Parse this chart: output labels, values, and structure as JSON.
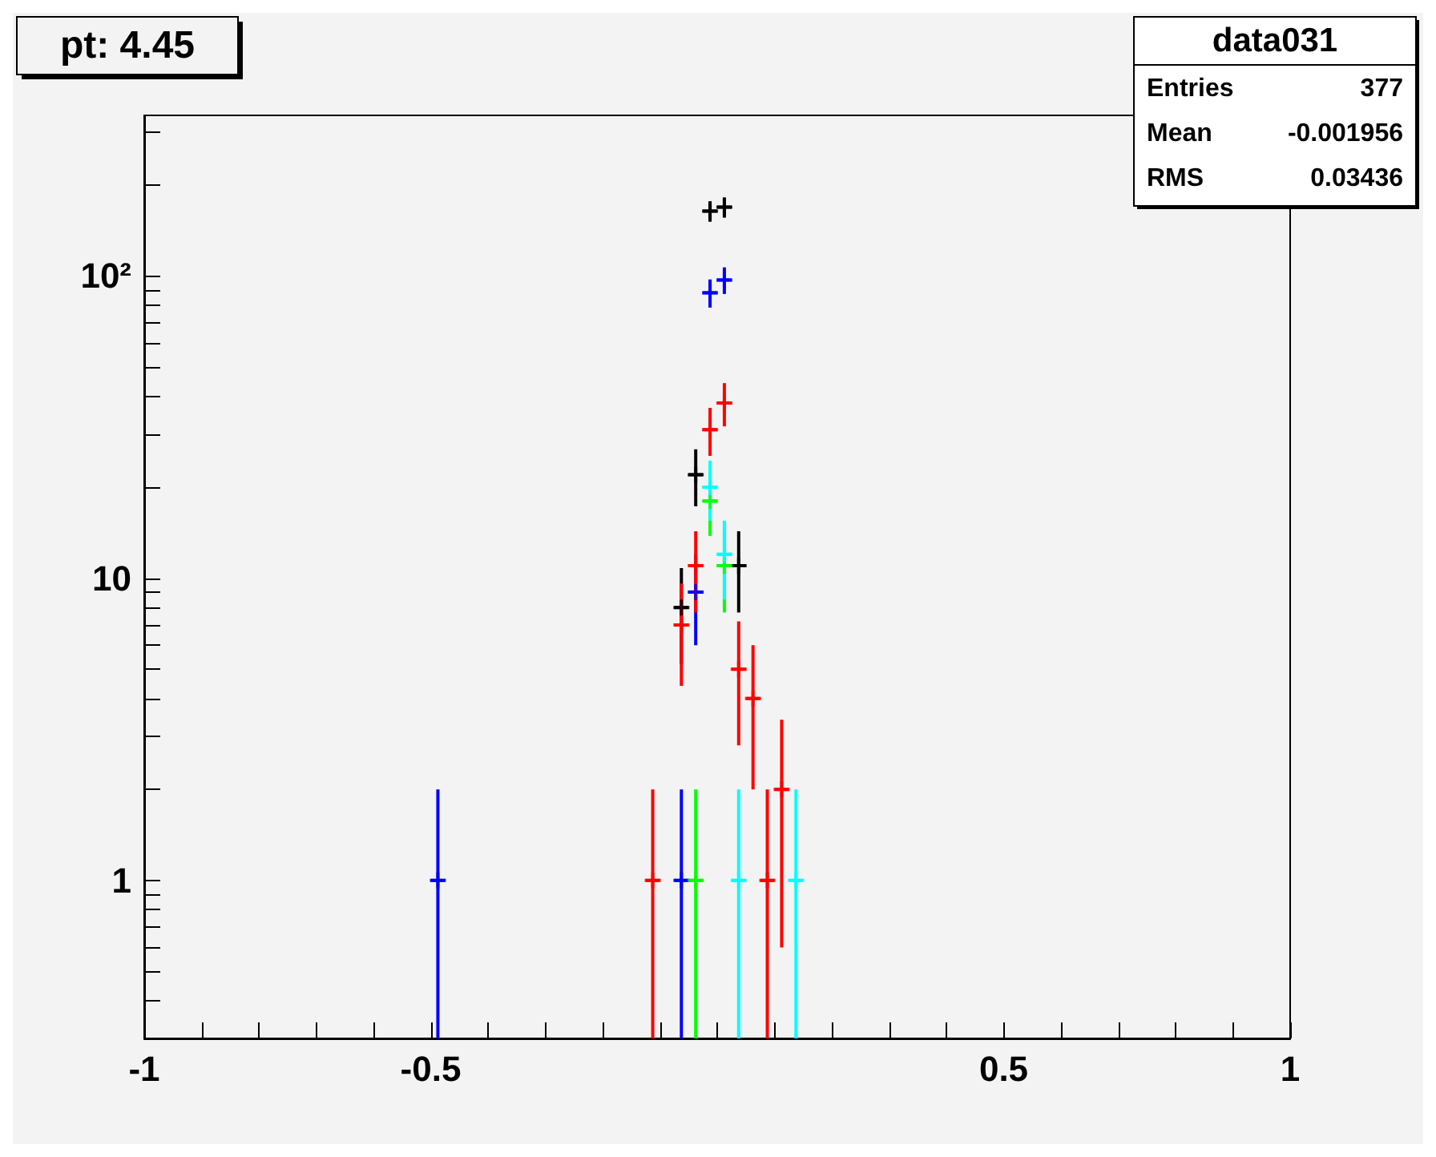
{
  "chart_data": {
    "type": "scatter",
    "title": "pt: 4.45",
    "annotations": [
      "data031",
      "Entries",
      "377",
      "Mean",
      "-0.001956",
      "RMS",
      "0.03436"
    ],
    "log": "y",
    "marker": "cross",
    "grid": false,
    "xlim": [
      -1,
      1
    ],
    "xticks": [
      -1,
      {
        "value": -0.9,
        "label": null
      },
      {
        "value": -0.8,
        "label": null
      },
      {
        "value": -0.7,
        "label": null
      },
      {
        "value": -0.6,
        "label": null
      },
      -0.5,
      {
        "value": -0.4,
        "label": null
      },
      {
        "value": -0.3,
        "label": null
      },
      {
        "value": -0.2,
        "label": null
      },
      {
        "value": -0.1,
        "label": null
      },
      {
        "value": 0,
        "label": null
      },
      {
        "value": 0.1,
        "label": null
      },
      {
        "value": 0.2,
        "label": null
      },
      {
        "value": 0.3,
        "label": null
      },
      {
        "value": 0.4,
        "label": null
      },
      0.5,
      {
        "value": 0.6,
        "label": null
      },
      {
        "value": 0.7,
        "label": null
      },
      {
        "value": 0.8,
        "label": null
      },
      {
        "value": 0.9,
        "label": null
      },
      1
    ],
    "ylim": [
      0.3,
      340
    ],
    "yticks": [
      {
        "value": 0.4,
        "label": null
      },
      {
        "value": 0.5,
        "label": null
      },
      {
        "value": 0.6,
        "label": null
      },
      {
        "value": 0.7,
        "label": null
      },
      {
        "value": 0.8,
        "label": null
      },
      {
        "value": 0.9,
        "label": null
      },
      1,
      {
        "value": 2,
        "label": null
      },
      {
        "value": 3,
        "label": null
      },
      {
        "value": 4,
        "label": null
      },
      {
        "value": 5,
        "label": null
      },
      {
        "value": 6,
        "label": null
      },
      {
        "value": 7,
        "label": null
      },
      {
        "value": 8,
        "label": null
      },
      {
        "value": 9,
        "label": null
      },
      10,
      {
        "value": 20,
        "label": null
      },
      {
        "value": 30,
        "label": null
      },
      {
        "value": 40,
        "label": null
      },
      {
        "value": 50,
        "label": null
      },
      {
        "value": 60,
        "label": null
      },
      {
        "value": 70,
        "label": null
      },
      {
        "value": 80,
        "label": null
      },
      {
        "value": 90,
        "label": null
      },
      {
        "value": 100,
        "label": "10²"
      },
      {
        "value": 200,
        "label": null
      },
      {
        "value": 300,
        "label": null
      }
    ],
    "series": [
      {
        "color": "#000000",
        "x": [
          -0.0625,
          -0.0375,
          -0.0125,
          0.0125,
          0.0375
        ],
        "values": [
          8,
          22,
          164,
          169,
          11
        ],
        "errors": [
          2.8,
          4.7,
          12.8,
          13,
          3.3
        ],
        "xerrors": [
          0.0125,
          0.0125,
          0.0125,
          0.0125,
          0.0125
        ]
      },
      {
        "color": "#0000ff",
        "x": [
          -0.4875,
          -0.0625,
          -0.0375,
          -0.0125,
          0.0125
        ],
        "values": [
          1,
          1,
          9,
          88,
          97
        ],
        "errors": [
          [
            0.3,
            2
          ],
          [
            0.3,
            2
          ],
          3,
          9.4,
          9.8
        ],
        "xerrors": [
          0.0125,
          0.0125,
          0.0125,
          0.0125,
          0.0125
        ]
      },
      {
        "color": "#ff0000",
        "x": [
          -0.1125,
          -0.0625,
          -0.0375,
          -0.0125,
          0.0125,
          0.0375,
          0.0625,
          0.0875,
          0.1125
        ],
        "values": [
          1,
          7,
          11,
          31,
          38,
          5,
          4,
          1,
          2
        ],
        "errors": [
          [
            0.3,
            2
          ],
          2.6,
          3.3,
          5.6,
          6.2,
          2.2,
          2,
          [
            0.3,
            2
          ],
          1.4
        ],
        "xerrors": [
          0.0125,
          0.0125,
          0.0125,
          0.0125,
          0.0125,
          0.0125,
          0.0125,
          0.0125,
          0.0125
        ]
      },
      {
        "color": "#00ff00",
        "x": [
          -0.0375,
          -0.0125,
          0.0125
        ],
        "values": [
          1,
          18,
          11
        ],
        "errors": [
          [
            0.3,
            2
          ],
          4.2,
          3.3
        ],
        "xerrors": [
          0.0125,
          0.0125,
          0.0125
        ]
      },
      {
        "color": "#00ffff",
        "x": [
          -0.0125,
          0.0125,
          0.0375,
          0.1375
        ],
        "values": [
          20,
          12,
          1,
          1
        ],
        "errors": [
          4.5,
          3.5,
          [
            0.3,
            2
          ],
          [
            0.3,
            2
          ]
        ],
        "xerrors": [
          0.0125,
          0.0125,
          0.0125,
          0.0125
        ]
      }
    ]
  }
}
